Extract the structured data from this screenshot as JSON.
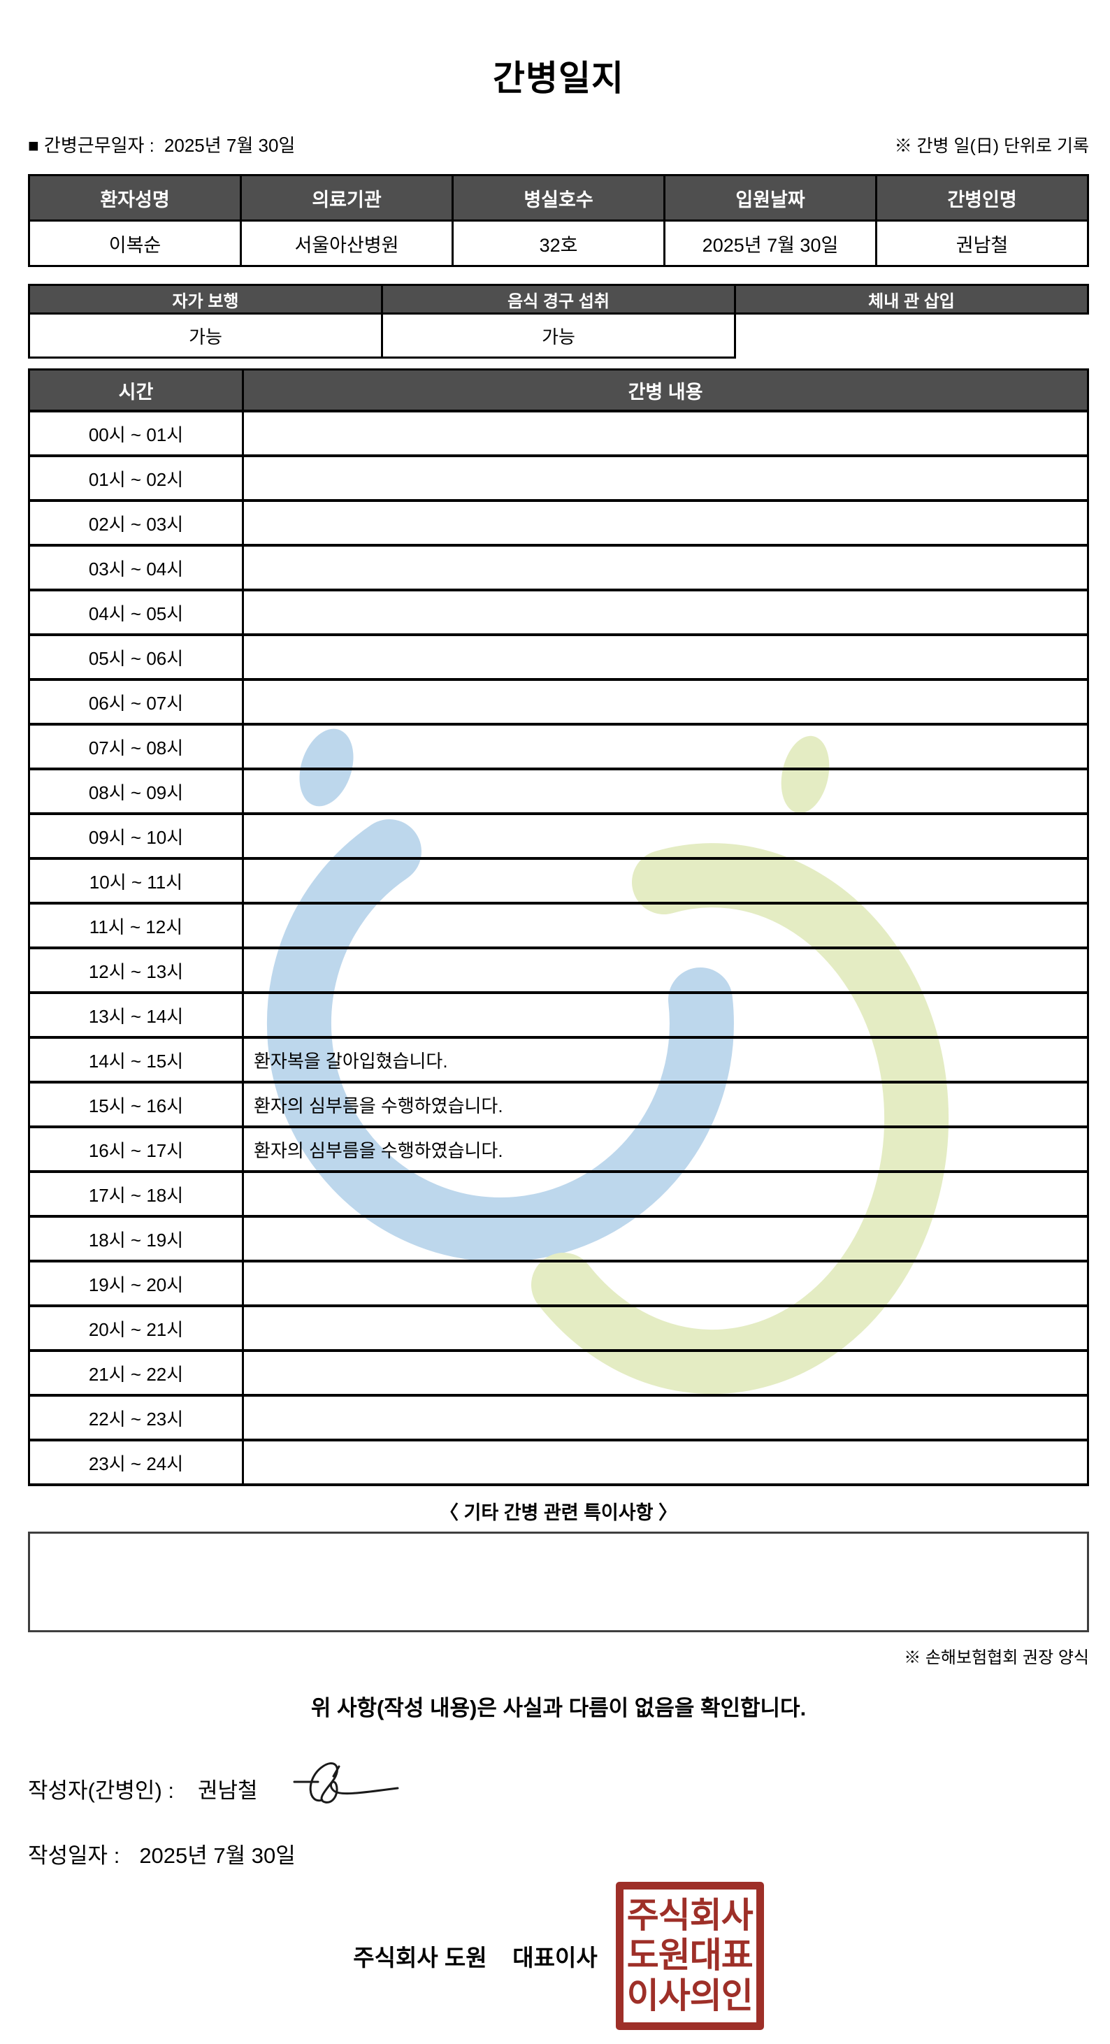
{
  "title": "간병일지",
  "meta": {
    "work_date_label": "■ 간병근무일자  :",
    "work_date_value": "2025년 7월 30일",
    "unit_note": "※ 간병 일(日) 단위로 기록"
  },
  "patient_table": {
    "headers": [
      "환자성명",
      "의료기관",
      "병실호수",
      "입원날짜",
      "간병인명"
    ],
    "values": [
      "이복순",
      "서울아산병원",
      "32호",
      "2025년 7월 30일",
      "권남철"
    ]
  },
  "status_table": {
    "headers": [
      "자가 보행",
      "음식 경구 섭취",
      "체내 관 삽입"
    ],
    "values": [
      "가능",
      "가능",
      ""
    ]
  },
  "log_table": {
    "time_header": "시간",
    "content_header": "간병 내용",
    "rows": [
      {
        "time": "00시 ~ 01시",
        "content": ""
      },
      {
        "time": "01시 ~ 02시",
        "content": ""
      },
      {
        "time": "02시 ~ 03시",
        "content": ""
      },
      {
        "time": "03시 ~ 04시",
        "content": ""
      },
      {
        "time": "04시 ~ 05시",
        "content": ""
      },
      {
        "time": "05시 ~ 06시",
        "content": ""
      },
      {
        "time": "06시 ~ 07시",
        "content": ""
      },
      {
        "time": "07시 ~ 08시",
        "content": ""
      },
      {
        "time": "08시 ~ 09시",
        "content": ""
      },
      {
        "time": "09시 ~ 10시",
        "content": ""
      },
      {
        "time": "10시 ~ 11시",
        "content": ""
      },
      {
        "time": "11시 ~ 12시",
        "content": ""
      },
      {
        "time": "12시 ~ 13시",
        "content": ""
      },
      {
        "time": "13시 ~ 14시",
        "content": ""
      },
      {
        "time": "14시 ~ 15시",
        "content": "환자복을 갈아입혔습니다."
      },
      {
        "time": "15시 ~ 16시",
        "content": "환자의 심부름을 수행하였습니다."
      },
      {
        "time": "16시 ~ 17시",
        "content": "환자의 심부름을 수행하였습니다."
      },
      {
        "time": "17시 ~ 18시",
        "content": ""
      },
      {
        "time": "18시 ~ 19시",
        "content": ""
      },
      {
        "time": "19시 ~ 20시",
        "content": ""
      },
      {
        "time": "20시 ~ 21시",
        "content": ""
      },
      {
        "time": "21시 ~ 22시",
        "content": ""
      },
      {
        "time": "22시 ~ 23시",
        "content": ""
      },
      {
        "time": "23시 ~ 24시",
        "content": ""
      }
    ]
  },
  "notes": {
    "title": "〈 기타 간병 관련 특이사항 〉",
    "content": "",
    "form_note": "※ 손해보험협회 권장 양식"
  },
  "confirmation": "위 사항(작성 내용)은 사실과 다름이 없음을 확인합니다.",
  "signature": {
    "writer_label": "작성자(간병인) :",
    "writer_name": "권남철",
    "date_label": "작성일자 :",
    "date_value": "2025년 7월 30일"
  },
  "company": {
    "name_line": "주식회사 도원    대표이사",
    "stamp_lines": [
      "주식회사",
      "도원대표",
      "이사의인"
    ]
  },
  "colors": {
    "header_bg": "#4f4f4f",
    "header_text": "#ffffff",
    "table_border": "#000000",
    "stamp_red": "#9e2f28",
    "watermark_blue": "#bdd7ec",
    "watermark_green": "#e4ecc3",
    "signature_ink": "#1a1a1a"
  }
}
